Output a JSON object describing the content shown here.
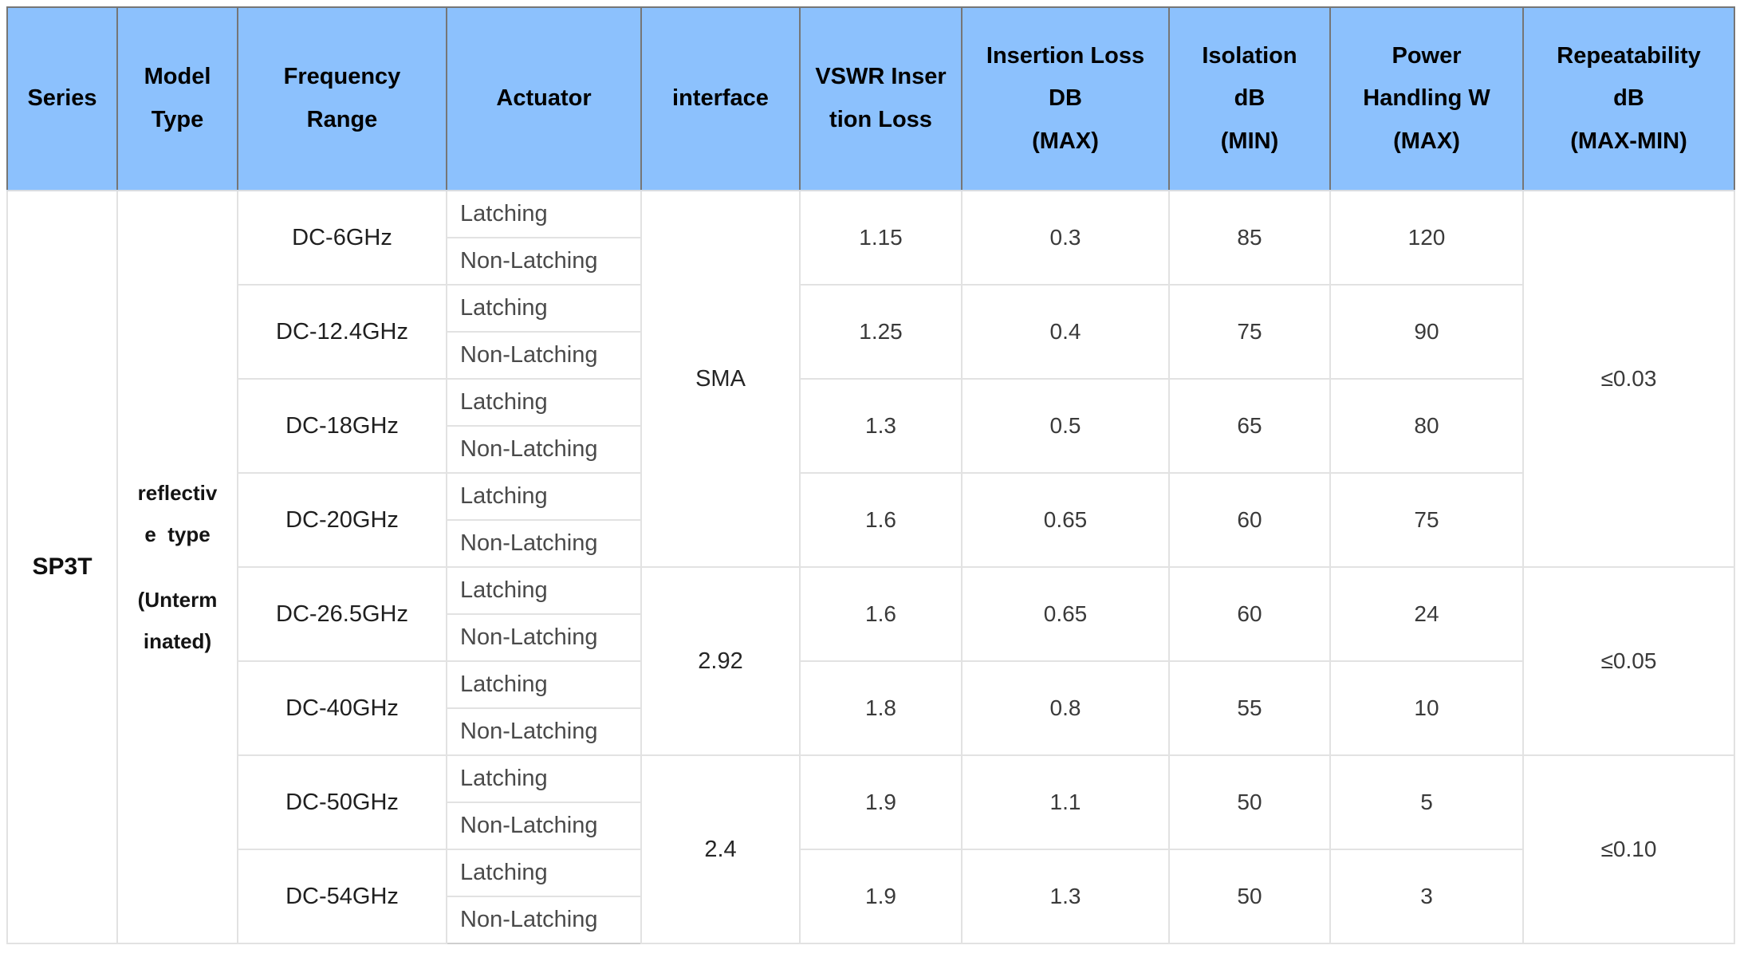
{
  "colors": {
    "header_bg": "#8CC1FD",
    "header_border": "#767676",
    "header_bottom": "#D9DCE1",
    "grid": "#E2E2E2"
  },
  "header": {
    "cells": [
      {
        "id": "series",
        "lines": [
          "Series"
        ]
      },
      {
        "id": "model-type",
        "lines": [
          "Model",
          "Type"
        ]
      },
      {
        "id": "frequency-range",
        "lines": [
          "Frequency",
          "Range"
        ]
      },
      {
        "id": "actuator",
        "lines": [
          "Actuator"
        ]
      },
      {
        "id": "interface",
        "lines": [
          "interface"
        ]
      },
      {
        "id": "vswr-insertion-loss",
        "lines": [
          "VSWR Inser",
          "tion Loss"
        ]
      },
      {
        "id": "insertion-loss-db-max",
        "lines": [
          "Insertion Loss",
          "DB",
          "(MAX)"
        ]
      },
      {
        "id": "isolation-db-min",
        "lines": [
          "Isolation",
          "dB",
          "(MIN)"
        ]
      },
      {
        "id": "power-handling-w-max",
        "lines": [
          "Power",
          "Handling W",
          "(MAX)"
        ]
      },
      {
        "id": "repeatability-db-max-min",
        "lines": [
          "Repeatability",
          "dB",
          "(MAX-MIN)"
        ]
      }
    ]
  },
  "body": {
    "series": "SP3T",
    "model_type": {
      "paragraph_1_lines": [
        "reflectiv",
        "e  type"
      ],
      "paragraph_2_lines": [
        "(Unterm",
        "inated)"
      ],
      "full_text": "reflective type (Unterminated)"
    },
    "actuator_options": [
      "Latching",
      "Non-Latching"
    ],
    "interfaces": [
      "SMA",
      "2.92",
      "2.4"
    ],
    "repeatability": [
      "≤0.03",
      "≤0.05",
      "≤0.10"
    ],
    "groups": [
      {
        "freq": "DC-6GHz",
        "vswr": "1.15",
        "insertion_loss": "0.3",
        "isolation": "85",
        "power": "120"
      },
      {
        "freq": "DC-12.4GHz",
        "vswr": "1.25",
        "insertion_loss": "0.4",
        "isolation": "75",
        "power": "90"
      },
      {
        "freq": "DC-18GHz",
        "vswr": "1.3",
        "insertion_loss": "0.5",
        "isolation": "65",
        "power": "80"
      },
      {
        "freq": "DC-20GHz",
        "vswr": "1.6",
        "insertion_loss": "0.65",
        "isolation": "60",
        "power": "75"
      },
      {
        "freq": "DC-26.5GHz",
        "vswr": "1.6",
        "insertion_loss": "0.65",
        "isolation": "60",
        "power": "24"
      },
      {
        "freq": "DC-40GHz",
        "vswr": "1.8",
        "insertion_loss": "0.8",
        "isolation": "55",
        "power": "10"
      },
      {
        "freq": "DC-50GHz",
        "vswr": "1.9",
        "insertion_loss": "1.1",
        "isolation": "50",
        "power": "5"
      },
      {
        "freq": "DC-54GHz",
        "vswr": "1.9",
        "insertion_loss": "1.3",
        "isolation": "50",
        "power": "3"
      }
    ]
  }
}
